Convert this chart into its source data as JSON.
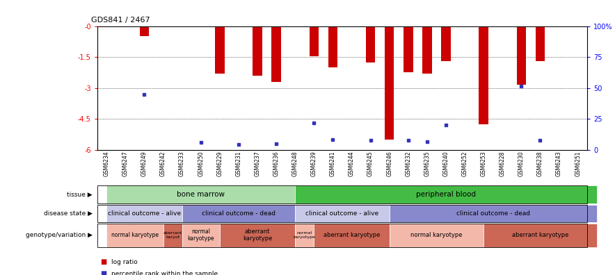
{
  "title": "GDS841 / 2467",
  "samples": [
    "GSM6234",
    "GSM6247",
    "GSM6249",
    "GSM6242",
    "GSM6233",
    "GSM6250",
    "GSM6229",
    "GSM6231",
    "GSM6237",
    "GSM6236",
    "GSM6248",
    "GSM6239",
    "GSM6241",
    "GSM6244",
    "GSM6245",
    "GSM6246",
    "GSM6232",
    "GSM6235",
    "GSM6240",
    "GSM6252",
    "GSM6253",
    "GSM6228",
    "GSM6230",
    "GSM6238",
    "GSM6243",
    "GSM6251"
  ],
  "log_ratio": [
    0,
    0,
    -0.5,
    0,
    0,
    0,
    -2.3,
    0,
    -2.4,
    -2.7,
    0,
    -1.45,
    -2.0,
    0,
    -1.75,
    -5.5,
    -2.25,
    -2.3,
    -1.7,
    0,
    -4.75,
    0,
    -2.85,
    -1.7,
    0,
    0
  ],
  "percentile_y": [
    null,
    null,
    -3.3,
    null,
    null,
    -5.65,
    null,
    -5.75,
    null,
    -5.7,
    null,
    -4.7,
    -5.5,
    null,
    -5.55,
    null,
    -5.55,
    -5.6,
    -4.8,
    null,
    null,
    null,
    -2.9,
    -5.55,
    null,
    null
  ],
  "ylim": [
    -6.0,
    0.0
  ],
  "yticks": [
    0,
    -1.5,
    -3.0,
    -4.5,
    -6.0
  ],
  "ytick_labels_left": [
    "-0",
    "-1.5",
    "-3",
    "-4.5",
    "-6"
  ],
  "ytick_labels_right": [
    "100%",
    "75",
    "50",
    "25",
    "0"
  ],
  "bar_color": "#cc0000",
  "dot_color": "#3333bb",
  "tissue_groups": [
    {
      "label": "bone marrow",
      "start": 0,
      "end": 10,
      "color": "#aaddaa"
    },
    {
      "label": "peripheral blood",
      "start": 10,
      "end": 26,
      "color": "#44bb44"
    }
  ],
  "disease_groups": [
    {
      "label": "clinical outcome - alive",
      "start": 0,
      "end": 4,
      "color": "#c8c8e8"
    },
    {
      "label": "clinical outcome - dead",
      "start": 4,
      "end": 10,
      "color": "#8888cc"
    },
    {
      "label": "clinical outcome - alive",
      "start": 10,
      "end": 15,
      "color": "#c8c8e8"
    },
    {
      "label": "clinical outcome - dead",
      "start": 15,
      "end": 26,
      "color": "#8888cc"
    }
  ],
  "genotype_groups": [
    {
      "label": "normal karyotype",
      "start": 0,
      "end": 3,
      "color": "#f4b8aa"
    },
    {
      "label": "aberrant\nkaryot",
      "start": 3,
      "end": 4,
      "color": "#cc6655"
    },
    {
      "label": "normal\nkaryotype",
      "start": 4,
      "end": 6,
      "color": "#f4b8aa"
    },
    {
      "label": "aberrant\nkaryotype",
      "start": 6,
      "end": 10,
      "color": "#cc6655"
    },
    {
      "label": "normal\nkaryotype",
      "start": 10,
      "end": 11,
      "color": "#f4b8aa"
    },
    {
      "label": "aberrant karyotype",
      "start": 11,
      "end": 15,
      "color": "#cc6655"
    },
    {
      "label": "normal karyotype",
      "start": 15,
      "end": 20,
      "color": "#f4b8aa"
    },
    {
      "label": "aberrant karyotype",
      "start": 20,
      "end": 26,
      "color": "#cc6655"
    }
  ]
}
